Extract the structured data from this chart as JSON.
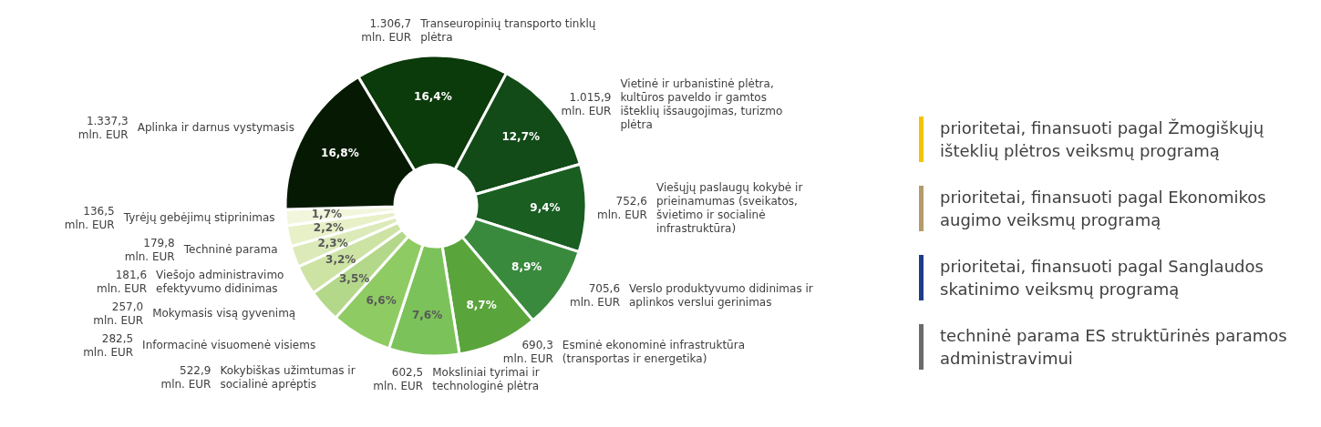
{
  "chart_data": [
    {
      "type": "donut",
      "categories": [
        "Transeuropinių transporto tinklų plėtra",
        "Vietinė ir urbanistinė plėtra, kultūros paveldo ir gamtos išteklių išsaugojimas, turizmo plėtra",
        "Viešųjų paslaugų kokybė ir prieinamumas (sveikatos, švietimo ir socialinė infrastruktūra)",
        "Verslo produktyvumo didinimas ir aplinkos verslui gerinimas",
        "Esminė ekonominė infrastruktūra (transportas ir energetika)",
        "Moksliniai tyrimai ir technologinė plėtra",
        "Kokybiškas užimtumas ir socialinė aprėptis",
        "Informacinė visuomenė visiems",
        "Mokymasis visą gyvenimą",
        "Viešojo administravimo efektyvumo didinimas",
        "Techninė parama",
        "Tyrėjų gebėjimų stiprinimas",
        "Aplinka ir darnus vystymasis"
      ],
      "values": [
        1306.7,
        1015.9,
        752.6,
        705.6,
        690.3,
        602.5,
        522.9,
        282.5,
        257.0,
        181.6,
        179.8,
        136.5,
        1337.3
      ],
      "colors": [
        "#0b3a0b",
        "#124a18",
        "#1a5e22",
        "#3a8a3e",
        "#5aa43c",
        "#7cc25a",
        "#8fcb63",
        "#b3d88a",
        "#cde3a4",
        "#dbeab8",
        "#e8f0c8",
        "#f2f6dd",
        "#061a03"
      ],
      "value_labels": [
        "1.306,7 mln. EUR",
        "1.015,9 mln. EUR",
        "752,6 mln. EUR",
        "705,6 mln. EUR",
        "690,3 mln. EUR",
        "602,5 mln. EUR",
        "522,9 mln. EUR",
        "282,5 mln. EUR",
        "257,0 mln. EUR",
        "181,6 mln. EUR",
        "179,8 mln. EUR",
        "136,5 mln. EUR",
        "1.337,3 mln. EUR"
      ],
      "annotations": [
        {
          "text": "16,4%",
          "x": "Transeuropinių transporto tinklų plėtra"
        },
        {
          "text": "12,7%",
          "x": "Vietinė ir urbanistinė plėtra, kultūros paveldo ir gamtos išteklių išsaugojimas, turizmo plėtra"
        },
        {
          "text": "9,4%",
          "x": "Viešųjų paslaugų kokybė ir prieinamumas (sveikatos, švietimo ir socialinė infrastruktūra)"
        },
        {
          "text": "8,9%",
          "x": "Verslo produktyvumo didinimas ir aplinkos verslui gerinimas"
        },
        {
          "text": "8,7%",
          "x": "Esminė ekonominė infrastruktūra (transportas ir energetika)"
        },
        {
          "text": "7,6%",
          "x": "Moksliniai tyrimai ir technologinė plėtra"
        },
        {
          "text": "6,6%",
          "x": "Kokybiškas užimtumas ir socialinė aprėptis"
        },
        {
          "text": "3,5%",
          "x": "Informacinė visuomenė visiems"
        },
        {
          "text": "3,2%",
          "x": "Mokymasis visą gyvenimą"
        },
        {
          "text": "2,3%",
          "x": "Viešojo administravimo efektyvumo didinimas"
        },
        {
          "text": "2,2%",
          "x": "Techninė parama"
        },
        {
          "text": "1,7%",
          "x": "Tyrėjų gebėjimų stiprinimas"
        },
        {
          "text": "16,8%",
          "x": "Aplinka ir darnus vystymasis"
        }
      ]
    },
    {
      "type": "other",
      "categories": [
        "prioritetai, finansuoti pagal Žmogiškųjų išteklių plėtros veiksmų programą",
        "prioritetai, finansuoti pagal Ekonomikos augimo veiksmų programą",
        "prioritetai, finansuoti pagal Sanglaudos skatinimo veiksmų programą",
        "techninė parama ES struktūrinės paramos administravimui"
      ],
      "colors": [
        "#f5c400",
        "#b39b6b",
        "#1f3c88",
        "#6b6b6b"
      ]
    }
  ]
}
